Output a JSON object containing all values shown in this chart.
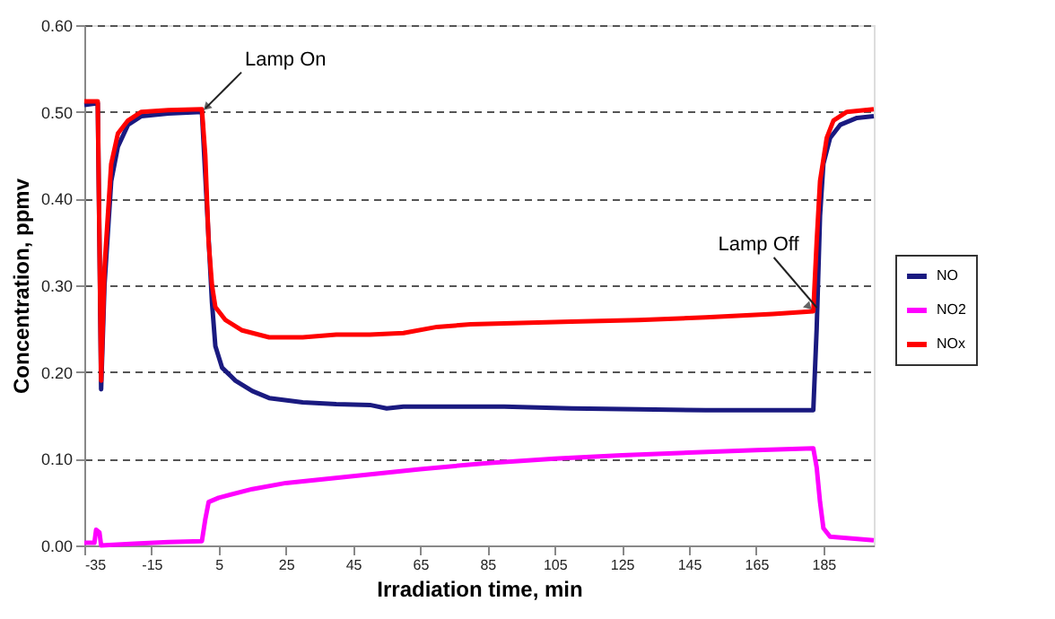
{
  "chart_data": {
    "type": "line",
    "xlabel": "Irradiation time, min",
    "ylabel": "Concentration, ppmv",
    "xlim": [
      -35,
      200
    ],
    "xticks": [
      -35,
      -15,
      5,
      25,
      45,
      65,
      85,
      105,
      125,
      145,
      165,
      185
    ],
    "ylim": [
      0,
      0.6
    ],
    "yticks": [
      {
        "value": 0,
        "label": "0.00"
      },
      {
        "value": 0.1,
        "label": "0.10"
      },
      {
        "value": 0.2,
        "label": "0.20"
      },
      {
        "value": 0.3,
        "label": "0.30"
      },
      {
        "value": 0.4,
        "label": "0.40"
      },
      {
        "value": 0.5,
        "label": "0.50"
      },
      {
        "value": 0.6,
        "label": "0.60"
      }
    ],
    "grid": "y",
    "legend": "right",
    "marker": "none",
    "line_style": "solid",
    "annotations": [
      {
        "text": "Lamp On",
        "x": 0,
        "y": 0.5
      },
      {
        "text": "Lamp Off",
        "x": 182,
        "y": 0.27
      }
    ],
    "series": [
      {
        "name": "NO",
        "color": "#1a1a80",
        "x": [
          -35,
          -31,
          -30.5,
          -30,
          -29,
          -27,
          -25,
          -22,
          -18,
          -10,
          0,
          3,
          4,
          6,
          10,
          15,
          20,
          30,
          40,
          50,
          55,
          60,
          70,
          90,
          110,
          130,
          150,
          170,
          182,
          183,
          184,
          185,
          187,
          190,
          195,
          200
        ],
        "values": [
          0.508,
          0.51,
          0.35,
          0.18,
          0.3,
          0.42,
          0.46,
          0.485,
          0.495,
          0.498,
          0.5,
          0.28,
          0.23,
          0.205,
          0.19,
          0.178,
          0.17,
          0.165,
          0.163,
          0.162,
          0.158,
          0.16,
          0.16,
          0.16,
          0.158,
          0.157,
          0.156,
          0.156,
          0.156,
          0.25,
          0.38,
          0.44,
          0.47,
          0.485,
          0.493,
          0.495
        ]
      },
      {
        "name": "NO2",
        "color": "#ff00ff",
        "x": [
          -35,
          -32,
          -31.5,
          -30.5,
          -30,
          -20,
          -10,
          0,
          1,
          2,
          5,
          15,
          25,
          45,
          65,
          85,
          105,
          125,
          145,
          165,
          182,
          183,
          184,
          185,
          187,
          200
        ],
        "values": [
          0.003,
          0.003,
          0.018,
          0.015,
          0.0,
          0.002,
          0.004,
          0.005,
          0.03,
          0.05,
          0.055,
          0.065,
          0.072,
          0.08,
          0.088,
          0.095,
          0.1,
          0.104,
          0.107,
          0.11,
          0.112,
          0.09,
          0.05,
          0.02,
          0.01,
          0.006
        ]
      },
      {
        "name": "NOx",
        "color": "#ff0000",
        "x": [
          -35,
          -31,
          -30.5,
          -30,
          -29,
          -27,
          -25,
          -22,
          -18,
          -10,
          0,
          1,
          2,
          3,
          4,
          7,
          12,
          20,
          30,
          40,
          50,
          60,
          70,
          80,
          90,
          110,
          130,
          150,
          170,
          182,
          183,
          184,
          186,
          188,
          192,
          200
        ],
        "values": [
          0.512,
          0.512,
          0.35,
          0.19,
          0.32,
          0.44,
          0.475,
          0.49,
          0.5,
          0.502,
          0.503,
          0.45,
          0.35,
          0.3,
          0.275,
          0.26,
          0.248,
          0.24,
          0.24,
          0.243,
          0.243,
          0.245,
          0.252,
          0.255,
          0.256,
          0.258,
          0.26,
          0.263,
          0.267,
          0.27,
          0.35,
          0.42,
          0.47,
          0.49,
          0.5,
          0.503
        ]
      }
    ]
  }
}
